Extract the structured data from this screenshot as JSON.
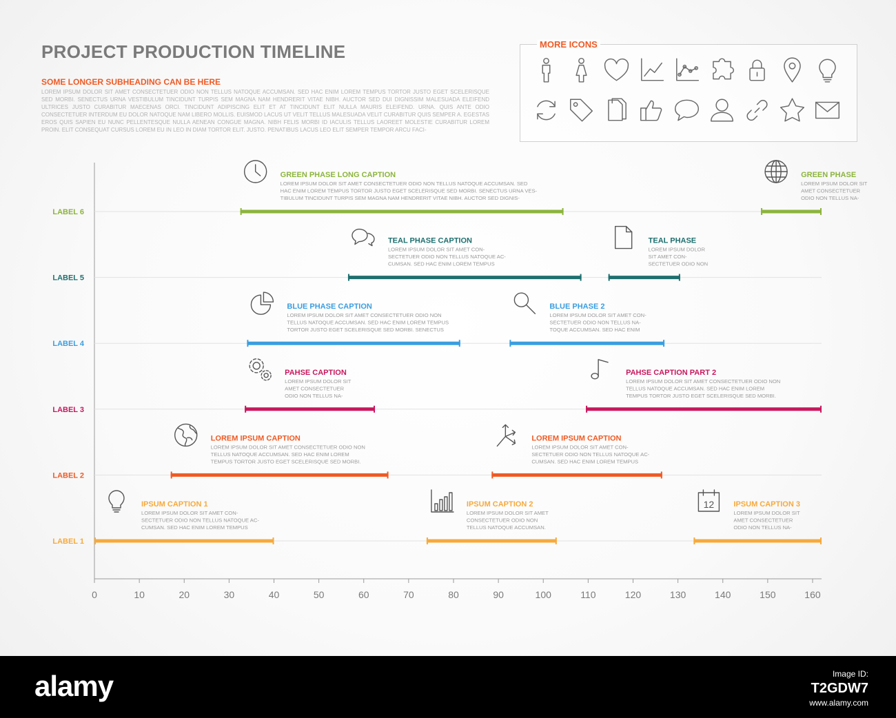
{
  "header": {
    "title": "PROJECT PRODUCTION TIMELINE",
    "subheading": "SOME LONGER SUBHEADING CAN BE HERE",
    "intro": "LOREM IPSUM DOLOR SIT AMET CONSECTETUER ODIO NON TELLUS NATOQUE ACCUMSAN. SED HAC ENIM LOREM TEMPUS TORTOR JUSTO EGET SCELERISQUE SED MORBI. SENECTUS URNA VESTIBULUM TINCIDUNT TURPIS SEM MAGNA NAM HENDRERIT VITAE NIBH. AUCTOR SED DUI DIGNISSIM MALESUADA ELEIFEND ULTRICES JUSTO CURABITUR MAECENAS ORCI. TINCIDUNT ADIPISCING ELIT ET AT TINCIDUNT ELIT NULLA MAURIS ELEIFEND. URNA. QUIS ANTE ODIO CONSECTETUER INTERDUM EU DOLOR NATOQUE NAM LIBERO MOLLIS. EUISMOD LACUS UT VELIT TELLUS MALESUADA VELIT CURABITUR QUIS SEMPER A. EGESTAS EROS QUIS SAPIEN EU NUNC PELLENTESQUE NULLA AENEAN CONGUE MAGNA. NIBH FELIS MORBI ID IACULIS TELLUS LAOREET MOLESTIE CURABITUR LOREM PROIN. ELIT CONSEQUAT CURSUS LOREM EU IN LEO IN DIAM TORTOR ELIT. JUSTO. PENATIBUS LACUS LEO ELIT SEMPER TEMPOR ARCU FACI-"
  },
  "icons_panel": {
    "title": "MORE ICONS",
    "icons": [
      "man-icon",
      "woman-icon",
      "heart-icon",
      "line-chart-icon",
      "point-chart-icon",
      "puzzle-icon",
      "lock-icon",
      "location-pin-icon",
      "lightbulb-icon",
      "refresh-icon",
      "tag-icon",
      "documents-icon",
      "thumbs-up-icon",
      "speech-bubble-icon",
      "user-icon",
      "link-icon",
      "star-icon",
      "envelope-icon"
    ]
  },
  "chart_data": {
    "type": "gantt",
    "xlim": [
      0,
      162
    ],
    "xticks": [
      0,
      10,
      20,
      30,
      40,
      50,
      60,
      70,
      80,
      90,
      100,
      110,
      120,
      130,
      140,
      150,
      160
    ],
    "rows": [
      {
        "label": "LABEL 1",
        "color": "#f6a93b"
      },
      {
        "label": "LABEL 2",
        "color": "#ef5a24"
      },
      {
        "label": "LABEL 3",
        "color": "#c8175d"
      },
      {
        "label": "LABEL 4",
        "color": "#3a9ee0"
      },
      {
        "label": "LABEL 5",
        "color": "#1f6f6f"
      },
      {
        "label": "LABEL 6",
        "color": "#8cb43c"
      }
    ],
    "tasks": [
      {
        "row": 0,
        "start": 0,
        "end": 40,
        "caption": "IPSUM CAPTION 1",
        "text": [
          "LOREM IPSUM DOLOR SIT AMET CON-",
          "SECTETUER ODIO NON TELLUS NATOQUE AC-",
          "CUMSAN. SED HAC ENIM LOREM TEMPUS"
        ],
        "icon": "lightbulb-icon"
      },
      {
        "row": 0,
        "start": 74,
        "end": 103,
        "caption": "IPSUM CAPTION 2",
        "text": [
          "LOREM IPSUM DOLOR SIT AMET",
          "CONSECTETUER ODIO NON",
          "TELLUS NATOQUE ACCUMSAN."
        ],
        "icon": "bar-chart-icon"
      },
      {
        "row": 0,
        "start": 133.5,
        "end": 162,
        "caption": "IPSUM CAPTION 3",
        "text": [
          "LOREM IPSUM DOLOR SIT",
          "AMET CONSECTETUER",
          "ODIO NON TELLUS NA-"
        ],
        "icon": "calendar-icon",
        "icon_text": "12"
      },
      {
        "row": 1,
        "start": 17,
        "end": 65.5,
        "caption": "LOREM IPSUM CAPTION",
        "text": [
          "LOREM IPSUM DOLOR SIT AMET CONSECTETUER ODIO NON",
          "TELLUS NATOQUE ACCUMSAN. SED HAC ENIM LOREM",
          "TEMPUS TORTOR JUSTO EGET SCELERISQUE SED MORBI."
        ],
        "icon": "globe-icon"
      },
      {
        "row": 1,
        "start": 88.5,
        "end": 126.5,
        "caption": "LOREM IPSUM CAPTION",
        "text": [
          "LOREM IPSUM DOLOR SIT AMET CON-",
          "SECTETUER ODIO NON TELLUS NATOQUE AC-",
          "CUMSAN. SED HAC ENIM LOREM TEMPUS"
        ],
        "icon": "directions-icon"
      },
      {
        "row": 2,
        "start": 33.5,
        "end": 62.5,
        "caption": "PAHSE CAPTION",
        "text": [
          "LOREM IPSUM DOLOR SIT",
          "AMET CONSECTETUER",
          "ODIO NON TELLUS NA-"
        ],
        "icon": "gears-icon"
      },
      {
        "row": 2,
        "start": 109.5,
        "end": 162,
        "caption": "PAHSE CAPTION PART 2",
        "text": [
          "LOREM IPSUM DOLOR SIT AMET CONSECTETUER ODIO NON",
          "TELLUS NATOQUE ACCUMSAN. SED HAC ENIM LOREM",
          "TEMPUS TORTOR JUSTO EGET SCELERISQUE SED MORBI."
        ],
        "icon": "music-note-icon"
      },
      {
        "row": 3,
        "start": 34,
        "end": 81.5,
        "caption": "BLUE PHASE CAPTION",
        "text": [
          "LOREM IPSUM DOLOR SIT AMET CONSECTETUER ODIO NON",
          "TELLUS NATOQUE ACCUMSAN. SED HAC ENIM LOREM TEMPUS",
          "TORTOR JUSTO EGET SCELERISQUE SED MORBI. SENECTUS"
        ],
        "icon": "pie-chart-icon"
      },
      {
        "row": 3,
        "start": 92.5,
        "end": 127,
        "caption": "BLUE PHASE 2",
        "text": [
          "LOREM IPSUM DOLOR SIT AMET CON-",
          "SECTETUER ODIO NON TELLUS NA-",
          "TOQUE ACCUMSAN. SED HAC ENIM"
        ],
        "icon": "magnifier-icon"
      },
      {
        "row": 4,
        "start": 56.5,
        "end": 108.5,
        "caption": "TEAL PHASE CAPTION",
        "text": [
          "LOREM IPSUM DOLOR SIT AMET CON-",
          "SECTETUER ODIO NON TELLUS NATOQUE AC-",
          "CUMSAN. SED HAC ENIM LOREM TEMPUS"
        ],
        "icon": "chat-bubbles-icon"
      },
      {
        "row": 4,
        "start": 114.5,
        "end": 130.5,
        "caption": "TEAL PHASE",
        "text": [
          "LOREM IPSUM DOLOR",
          "SIT AMET CON-",
          "SECTETUER ODIO NON"
        ],
        "icon": "document-icon"
      },
      {
        "row": 5,
        "start": 32.5,
        "end": 104.5,
        "caption": "GREEN PHASE LONG CAPTION",
        "text": [
          "LOREM IPSUM DOLOR SIT AMET CONSECTETUER ODIO NON TELLUS NATOQUE ACCUMSAN. SED",
          "HAC ENIM LOREM TEMPUS TORTOR JUSTO EGET SCELERISQUE SED MORBI. SENECTUS URNA VES-",
          "TIBULUM TINCIDUNT TURPIS SEM MAGNA NAM HENDRERIT VITAE NIBH. AUCTOR SED DIGNIS-"
        ],
        "icon": "clock-icon"
      },
      {
        "row": 5,
        "start": 148.5,
        "end": 162,
        "caption": "GREEN PHASE",
        "text": [
          "LOREM IPSUM DOLOR SIT",
          "AMET CONSECTETUER",
          "ODIO NON TELLUS NA-"
        ],
        "icon": "globe-grid-icon"
      }
    ]
  },
  "footer": {
    "logo": "alamy",
    "image_id_label": "Image ID:",
    "image_id": "T2GDW7",
    "site": "www.alamy.com"
  }
}
